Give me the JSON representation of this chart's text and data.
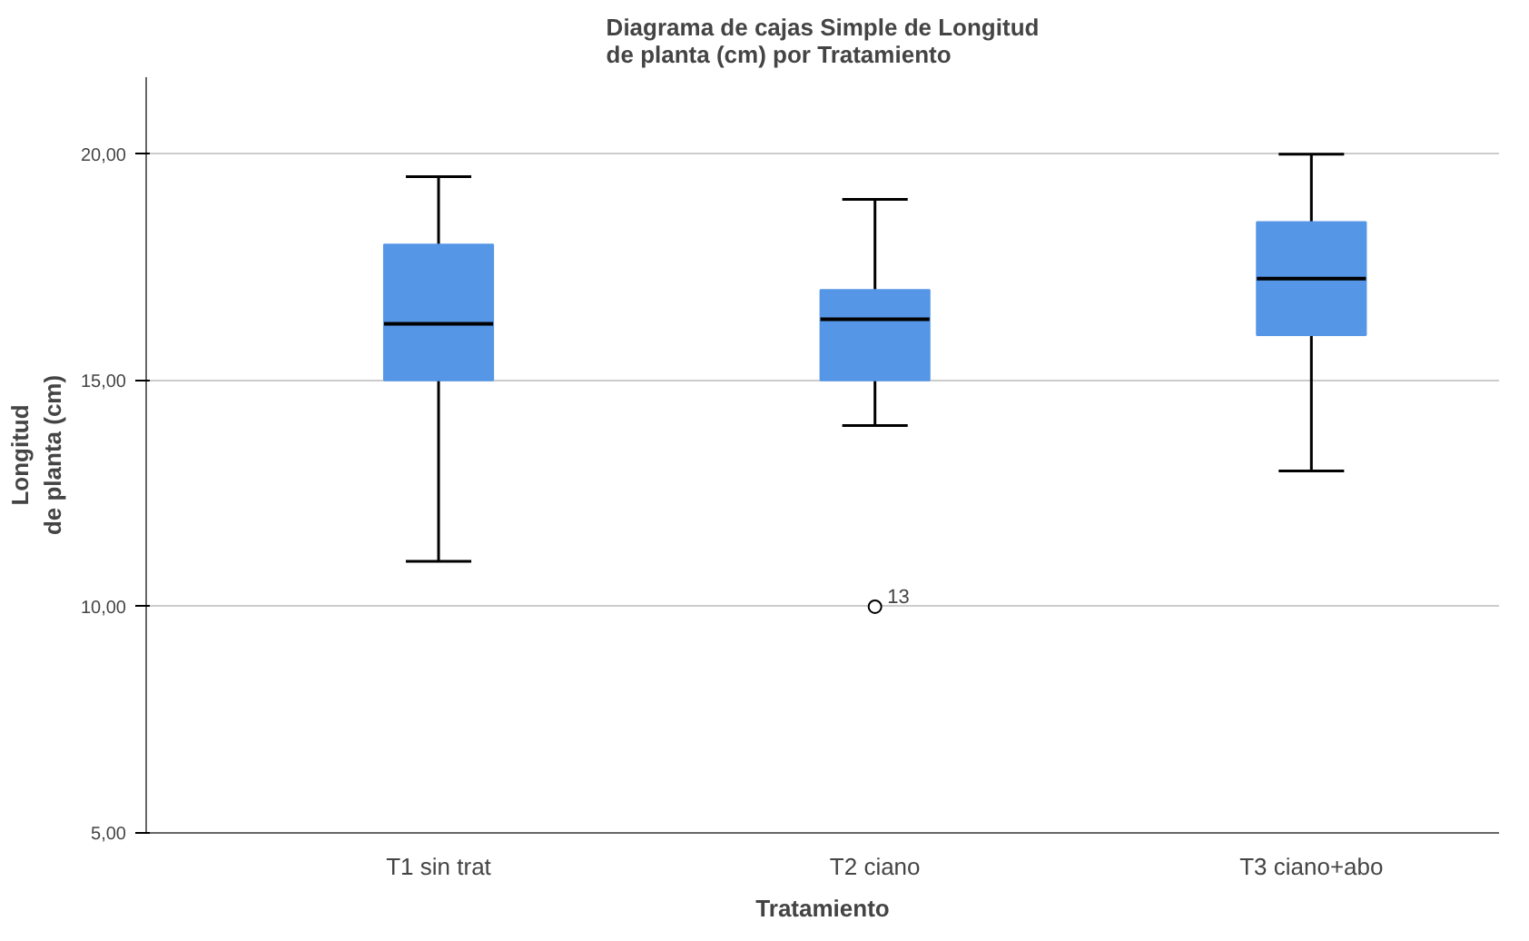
{
  "chart_data": {
    "type": "box",
    "title": "Diagrama de cajas Simple de Longitud\nde planta (cm) por Tratamiento",
    "xlabel": "Tratamiento",
    "ylabel": "Longitud\nde planta (cm)",
    "categories": [
      "T1 sin trat",
      "T2 ciano",
      "T3 ciano+abo"
    ],
    "color": "#5596e6",
    "boxes": [
      {
        "low": 11.0,
        "q1": 15.0,
        "median": 16.25,
        "q3": 18.0,
        "high": 19.5
      },
      {
        "low": 14.0,
        "q1": 15.0,
        "median": 16.35,
        "q3": 17.0,
        "high": 19.0,
        "outliers": [
          10.0
        ]
      },
      {
        "low": 13.0,
        "q1": 16.0,
        "median": 17.25,
        "q3": 18.5,
        "high": 20.0
      }
    ],
    "ylim": [
      5,
      21.7
    ],
    "yticks": [
      {
        "value": 5,
        "label": "5,00"
      },
      {
        "value": 10,
        "label": "10,00"
      },
      {
        "value": 15,
        "label": "15,00"
      },
      {
        "value": 20,
        "label": "20,00"
      }
    ],
    "grid": "y",
    "annotations": [
      "13"
    ]
  }
}
